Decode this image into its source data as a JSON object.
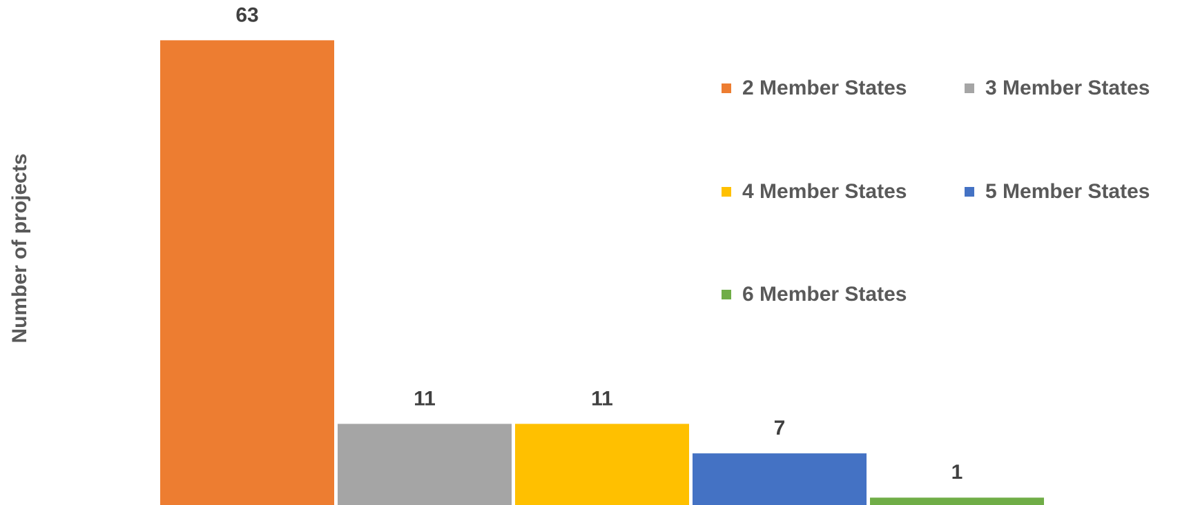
{
  "chart_data": {
    "type": "bar",
    "y_label": "Number of projects",
    "series": [
      {
        "name": "2 Member States",
        "color": "#ed7d31",
        "values": [
          63
        ]
      },
      {
        "name": "3 Member States",
        "color": "#a5a5a5",
        "values": [
          11
        ]
      },
      {
        "name": "4 Member States",
        "color": "#ffc000",
        "values": [
          11
        ]
      },
      {
        "name": "5 Member States",
        "color": "#4472c4",
        "values": [
          7
        ]
      },
      {
        "name": "6 Member States",
        "color": "#70ad47",
        "values": [
          1
        ]
      }
    ],
    "ylim": [
      0,
      65
    ],
    "legend": "upper right"
  }
}
